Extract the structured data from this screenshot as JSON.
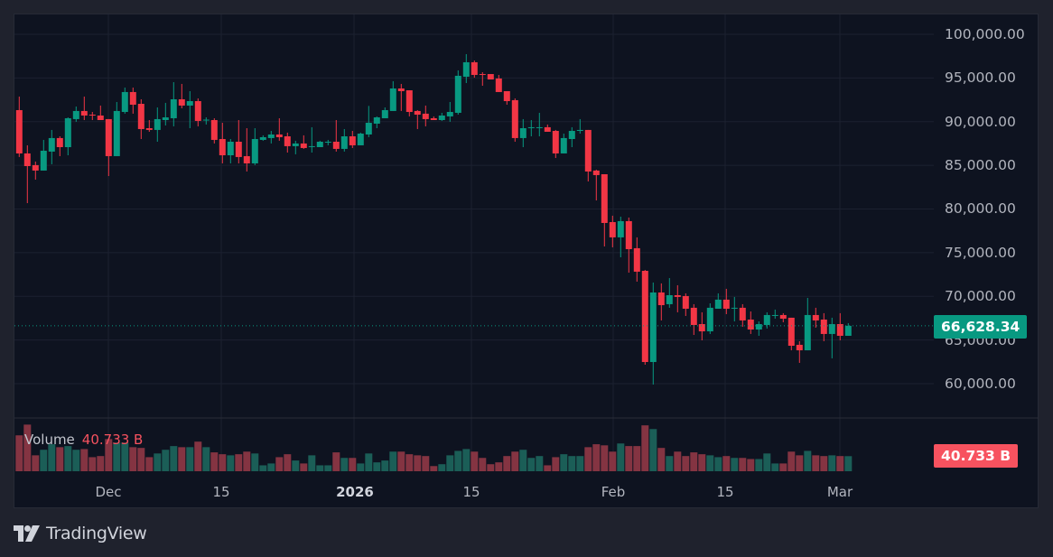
{
  "chart_data": {
    "type": "candlestick",
    "title": "",
    "price_axis": {
      "min": 55000,
      "max": 102000,
      "ticks": [
        "100,000.00",
        "95,000.00",
        "90,000.00",
        "85,000.00",
        "80,000.00",
        "75,000.00",
        "70,000.00",
        "65,000.00",
        "60,000.00"
      ],
      "tick_values": [
        100000,
        95000,
        90000,
        85000,
        80000,
        75000,
        70000,
        65000,
        60000
      ]
    },
    "time_axis": {
      "labels": [
        "Dec",
        "15",
        "2026",
        "15",
        "Feb",
        "15",
        "Mar"
      ],
      "label_dates": [
        "2025-12-01",
        "2025-12-15",
        "2026-01-01",
        "2026-01-15",
        "2026-02-01",
        "2026-02-15",
        "2026-03-01"
      ],
      "first_date": "2025-11-20"
    },
    "grid": true,
    "ohlc_fields": [
      "open",
      "high",
      "low",
      "close"
    ],
    "candles": [
      [
        91320,
        92870,
        85950,
        86360
      ],
      [
        86360,
        87290,
        80670,
        84910
      ],
      [
        85020,
        85430,
        83360,
        84400
      ],
      [
        84400,
        87910,
        84400,
        86670
      ],
      [
        86570,
        89050,
        85120,
        88120
      ],
      [
        88120,
        88320,
        86050,
        87080
      ],
      [
        87080,
        90490,
        86150,
        90390
      ],
      [
        90290,
        91730,
        89980,
        91220
      ],
      [
        91220,
        92870,
        90180,
        90700
      ],
      [
        90800,
        91110,
        90180,
        90750
      ],
      [
        90700,
        91840,
        90180,
        90180
      ],
      [
        90290,
        90290,
        83770,
        86050
      ],
      [
        86050,
        92250,
        86050,
        91220
      ],
      [
        91110,
        93900,
        90910,
        93390
      ],
      [
        93390,
        93900,
        90910,
        91940
      ],
      [
        92040,
        92560,
        88010,
        89150
      ],
      [
        89250,
        90180,
        88840,
        89050
      ],
      [
        89050,
        91630,
        87700,
        90290
      ],
      [
        90180,
        92150,
        89560,
        90490
      ],
      [
        90390,
        94520,
        89460,
        92560
      ],
      [
        92560,
        94320,
        91530,
        91840
      ],
      [
        91840,
        93490,
        89250,
        92350
      ],
      [
        92350,
        92660,
        89460,
        90080
      ],
      [
        90180,
        90490,
        89670,
        90230
      ],
      [
        90180,
        90390,
        87500,
        87910
      ],
      [
        88010,
        89870,
        85220,
        86150
      ],
      [
        86150,
        88010,
        85220,
        87700
      ],
      [
        87700,
        90180,
        85220,
        85950
      ],
      [
        86050,
        89250,
        84290,
        85220
      ],
      [
        85220,
        89250,
        85020,
        88010
      ],
      [
        87910,
        88430,
        87810,
        88220
      ],
      [
        88120,
        88940,
        87500,
        88530
      ],
      [
        88530,
        90390,
        87810,
        88220
      ],
      [
        88320,
        88740,
        86460,
        87190
      ],
      [
        87190,
        87810,
        86260,
        87500
      ],
      [
        87500,
        88430,
        86880,
        86980
      ],
      [
        87130,
        89360,
        86460,
        87190
      ],
      [
        87080,
        87810,
        87080,
        87700
      ],
      [
        87680,
        87910,
        87290,
        87700
      ],
      [
        87700,
        90180,
        86570,
        86880
      ],
      [
        86880,
        89150,
        86570,
        88320
      ],
      [
        88320,
        88940,
        86980,
        87290
      ],
      [
        87290,
        88740,
        87290,
        88630
      ],
      [
        88530,
        91800,
        88220,
        89870
      ],
      [
        89770,
        90600,
        89250,
        90490
      ],
      [
        90390,
        91630,
        90390,
        91320
      ],
      [
        91220,
        94630,
        91220,
        93800
      ],
      [
        93800,
        94320,
        91220,
        93490
      ],
      [
        93590,
        93590,
        90600,
        91110
      ],
      [
        91220,
        91320,
        89150,
        90800
      ],
      [
        90910,
        91840,
        89460,
        90290
      ],
      [
        90390,
        90600,
        90180,
        90180
      ],
      [
        90180,
        91010,
        90080,
        90700
      ],
      [
        90600,
        92250,
        89980,
        91110
      ],
      [
        91010,
        95870,
        90800,
        95250
      ],
      [
        95140,
        97730,
        94420,
        96800
      ],
      [
        96800,
        97000,
        95040,
        95350
      ],
      [
        95450,
        95660,
        94110,
        95350
      ],
      [
        95450,
        95450,
        94830,
        94830
      ],
      [
        94940,
        95350,
        93390,
        93390
      ],
      [
        93490,
        93490,
        91940,
        92350
      ],
      [
        92460,
        92660,
        87700,
        88120
      ],
      [
        88120,
        90290,
        87080,
        89250
      ],
      [
        89310,
        90180,
        88320,
        89360
      ],
      [
        89340,
        91010,
        88320,
        89360
      ],
      [
        89360,
        89670,
        88840,
        88840
      ],
      [
        88940,
        89050,
        85840,
        86360
      ],
      [
        86360,
        88630,
        86360,
        88120
      ],
      [
        88010,
        89360,
        87080,
        88940
      ],
      [
        88940,
        90290,
        88630,
        89050
      ],
      [
        89050,
        89050,
        83150,
        84290
      ],
      [
        84400,
        84500,
        80980,
        83880
      ],
      [
        83980,
        83980,
        75710,
        78400
      ],
      [
        78500,
        79230,
        75610,
        76750
      ],
      [
        76750,
        79120,
        74470,
        78610
      ],
      [
        78610,
        79020,
        72710,
        75400
      ],
      [
        75510,
        76750,
        71680,
        72820
      ],
      [
        72920,
        73020,
        62170,
        62480
      ],
      [
        62480,
        71580,
        59900,
        70440
      ],
      [
        70440,
        71480,
        67240,
        68990
      ],
      [
        69100,
        72090,
        68690,
        70130
      ],
      [
        70130,
        71270,
        68170,
        69930
      ],
      [
        70030,
        70340,
        67750,
        68580
      ],
      [
        68690,
        69100,
        65580,
        66720
      ],
      [
        66820,
        68170,
        64960,
        65990
      ],
      [
        65990,
        69200,
        65690,
        68690
      ],
      [
        68580,
        70340,
        68580,
        69620
      ],
      [
        69620,
        70860,
        67960,
        68580
      ],
      [
        68660,
        69930,
        67130,
        68690
      ],
      [
        68690,
        69100,
        66510,
        67240
      ],
      [
        67340,
        68270,
        65690,
        66200
      ],
      [
        66200,
        67130,
        65480,
        66820
      ],
      [
        66720,
        68170,
        66310,
        67860
      ],
      [
        67840,
        68480,
        67440,
        67860
      ],
      [
        67860,
        68070,
        67030,
        67440
      ],
      [
        67550,
        67550,
        63820,
        64340
      ],
      [
        64450,
        64860,
        62380,
        63820
      ],
      [
        63820,
        69820,
        63820,
        67860
      ],
      [
        67860,
        68690,
        66410,
        67240
      ],
      [
        67340,
        68070,
        64860,
        65690
      ],
      [
        65690,
        67550,
        62900,
        66820
      ],
      [
        66820,
        68070,
        64960,
        65480
      ],
      [
        65480,
        66930,
        65480,
        66628.34
      ]
    ],
    "volume_unit": "B",
    "volume": [
      97,
      126,
      43,
      58,
      73,
      65,
      68,
      58,
      60,
      38,
      41,
      87,
      77,
      77,
      65,
      63,
      38,
      48,
      58,
      68,
      65,
      65,
      80,
      65,
      51,
      46,
      43,
      46,
      53,
      48,
      16,
      21,
      38,
      46,
      29,
      21,
      43,
      16,
      16,
      51,
      36,
      36,
      21,
      48,
      24,
      29,
      53,
      53,
      46,
      43,
      41,
      14,
      19,
      43,
      55,
      60,
      53,
      36,
      19,
      24,
      41,
      53,
      58,
      36,
      41,
      16,
      38,
      46,
      41,
      41,
      65,
      73,
      70,
      53,
      75,
      68,
      68,
      124,
      114,
      63,
      41,
      53,
      41,
      51,
      46,
      43,
      38,
      41,
      36,
      36,
      33,
      33,
      48,
      21,
      21,
      53,
      43,
      55,
      43,
      41,
      43,
      41,
      40.733
    ],
    "last_price": 66628.34,
    "last_price_label": "66,628.34",
    "volume_legend": {
      "name": "Volume",
      "value": "40.733 B"
    },
    "last_volume_label": "40.733 B",
    "colors": {
      "up": "#089981",
      "down": "#f23645",
      "vol_up": "#1b5e57",
      "vol_down": "#843442",
      "grid": "#1c2130"
    }
  },
  "branding": {
    "logo_text": "TradingView"
  }
}
